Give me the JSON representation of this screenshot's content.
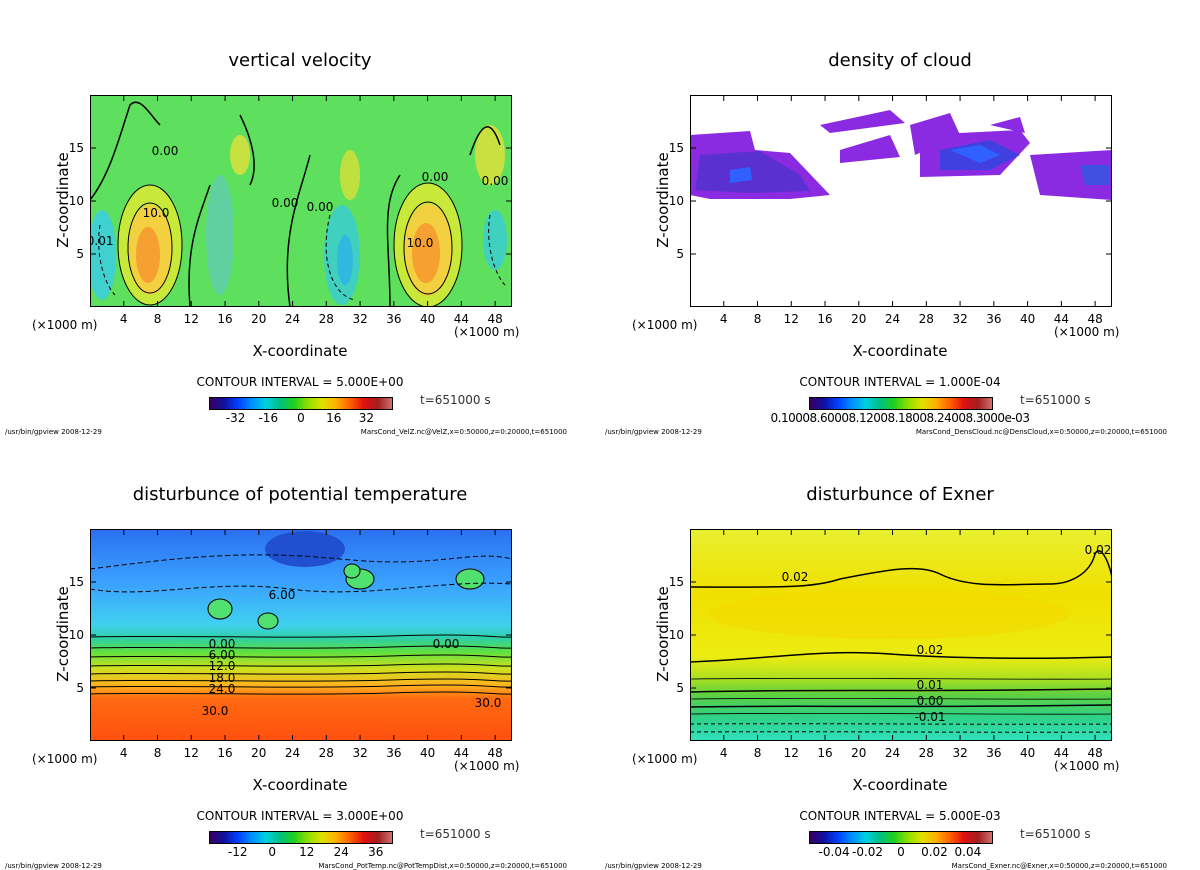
{
  "chart_data": [
    {
      "type": "heatmap",
      "title": "vertical velocity",
      "xlabel": "X-coordinate",
      "ylabel": "Z-coordinate",
      "x_unit": "(×1000 m)",
      "xlim": [
        0,
        50
      ],
      "ylim": [
        0,
        20
      ],
      "xticks": [
        4,
        8,
        12,
        16,
        20,
        24,
        28,
        32,
        36,
        40,
        44,
        48
      ],
      "yticks": [
        5,
        10,
        15
      ],
      "contour_interval": "CONTOUR INTERVAL = 5.000E+00",
      "time": "t=651000 s",
      "colorbar": {
        "range": [
          -45,
          45
        ],
        "ticks": [
          "-32",
          "-16",
          "0",
          "16",
          "32"
        ],
        "tick_values": [
          -32,
          -16,
          0,
          16,
          32
        ]
      },
      "contour_labels": [
        "10.0",
        "10.0",
        "0.00",
        "0.00",
        "0.00",
        "0.00",
        "-0.01",
        "0.00"
      ],
      "footer_left": "/usr/bin/gpview  2008-12-29",
      "footer_right": "MarsCond_VelZ.nc@VelZ,x=0:50000,z=0:20000,t=651000"
    },
    {
      "type": "heatmap",
      "title": "density of cloud",
      "xlabel": "X-coordinate",
      "ylabel": "Z-coordinate",
      "x_unit": "(×1000 m)",
      "xlim": [
        0,
        50
      ],
      "ylim": [
        0,
        20
      ],
      "xticks": [
        4,
        8,
        12,
        16,
        20,
        24,
        28,
        32,
        36,
        40,
        44,
        48
      ],
      "yticks": [
        5,
        10,
        15
      ],
      "contour_interval": "CONTOUR INTERVAL = 1.000E-04",
      "time": "t=651000 s",
      "colorbar": {
        "range": [
          0,
          1
        ],
        "overlapped_ticks": "0.10008.60008.12008.18008.24008.3000e-03"
      },
      "contour_labels": [],
      "footer_left": "/usr/bin/gpview  2008-12-29",
      "footer_right": "MarsCond_DensCloud.nc@DensCloud,x=0:50000,z=0:20000,t=651000"
    },
    {
      "type": "heatmap",
      "title": "disturbunce of potential temperature",
      "xlabel": "X-coordinate",
      "ylabel": "Z-coordinate",
      "x_unit": "(×1000 m)",
      "xlim": [
        0,
        50
      ],
      "ylim": [
        0,
        20
      ],
      "xticks": [
        4,
        8,
        12,
        16,
        20,
        24,
        28,
        32,
        36,
        40,
        44,
        48
      ],
      "yticks": [
        5,
        10,
        15
      ],
      "contour_interval": "CONTOUR INTERVAL = 3.000E+00",
      "time": "t=651000 s",
      "colorbar": {
        "range": [
          -22,
          42
        ],
        "ticks": [
          "-12",
          "0",
          "12",
          "24",
          "36"
        ],
        "tick_values": [
          -12,
          0,
          12,
          24,
          36
        ]
      },
      "contour_labels": [
        "0.00",
        "6.00",
        "12.0",
        "18.0",
        "24.0",
        "30.0",
        "30.0",
        "0.00",
        "6.00"
      ],
      "footer_left": "/usr/bin/gpview  2008-12-29",
      "footer_right": "MarsCond_PotTemp.nc@PotTempDist,x=0:50000,z=0:20000,t=651000"
    },
    {
      "type": "heatmap",
      "title": "disturbunce of Exner",
      "xlabel": "X-coordinate",
      "ylabel": "Z-coordinate",
      "x_unit": "(×1000 m)",
      "xlim": [
        0,
        50
      ],
      "ylim": [
        0,
        20
      ],
      "xticks": [
        4,
        8,
        12,
        16,
        20,
        24,
        28,
        32,
        36,
        40,
        44,
        48
      ],
      "yticks": [
        5,
        10,
        15
      ],
      "contour_interval": "CONTOUR INTERVAL = 5.000E-03",
      "time": "t=651000 s",
      "colorbar": {
        "range": [
          -0.055,
          0.055
        ],
        "ticks": [
          "-0.04",
          "-0.02",
          "0",
          "0.02",
          "0.04"
        ],
        "tick_values": [
          -0.04,
          -0.02,
          0,
          0.02,
          0.04
        ]
      },
      "contour_labels": [
        "0.02",
        "0.02",
        "0.02",
        "0.01",
        "0.00",
        "-0.01"
      ],
      "footer_left": "/usr/bin/gpview  2008-12-29",
      "footer_right": "MarsCond_Exner.nc@Exner,x=0:50000,z=0:20000,t=651000"
    }
  ]
}
